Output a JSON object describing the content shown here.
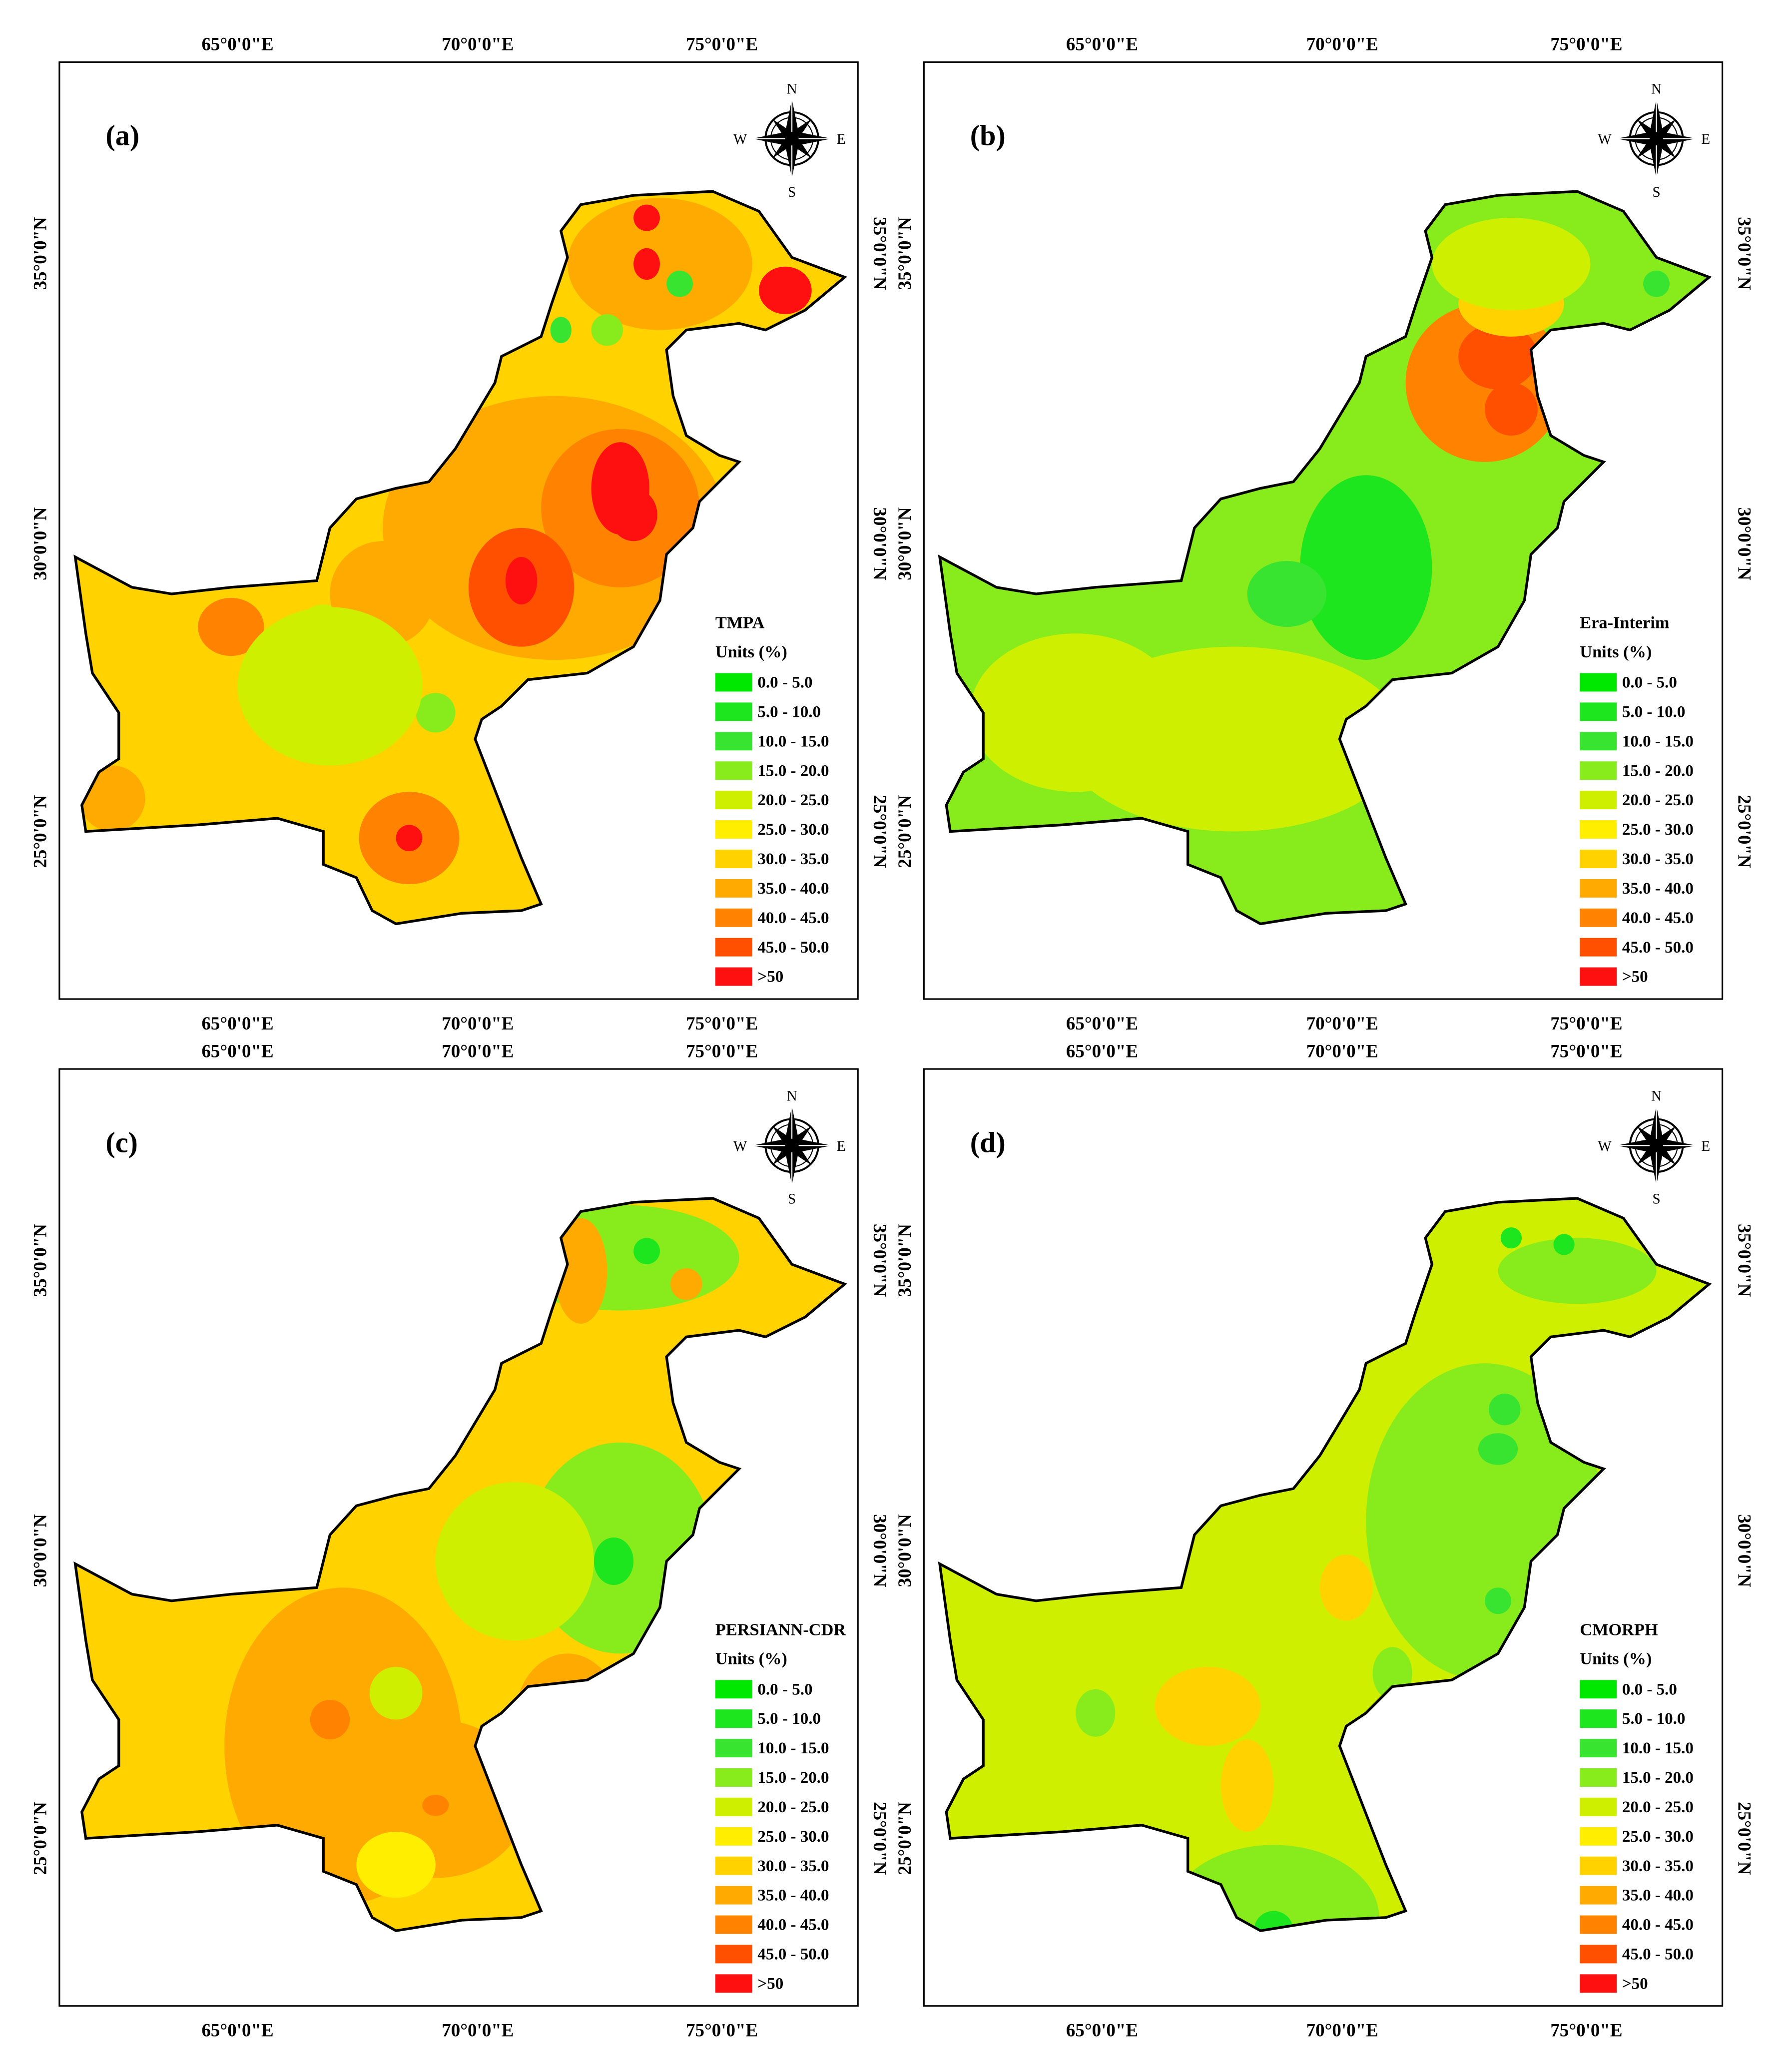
{
  "panels": [
    {
      "label": "(a)",
      "legend_title": "TMPA"
    },
    {
      "label": "(b)",
      "legend_title": "Era-Interim"
    },
    {
      "label": "(c)",
      "legend_title": "PERSIANN-CDR"
    },
    {
      "label": "(d)",
      "legend_title": "CMORPH"
    }
  ],
  "legend": {
    "units": "Units (%)",
    "classes": [
      {
        "label": "0.0 - 5.0",
        "color": "#00e800"
      },
      {
        "label": "5.0 - 10.0",
        "color": "#1ee61e"
      },
      {
        "label": "10.0 - 15.0",
        "color": "#38e430"
      },
      {
        "label": "15.0 - 20.0",
        "color": "#88ec1c"
      },
      {
        "label": "20.0 - 25.0",
        "color": "#cef000"
      },
      {
        "label": "25.0 - 30.0",
        "color": "#ffee00"
      },
      {
        "label": "30.0 - 35.0",
        "color": "#ffd200"
      },
      {
        "label": "35.0 - 40.0",
        "color": "#ffaa00"
      },
      {
        "label": "40.0 - 45.0",
        "color": "#ff8200"
      },
      {
        "label": "45.0 - 50.0",
        "color": "#ff5000"
      },
      {
        "label": ">50",
        "color": "#ff1010"
      }
    ]
  },
  "axes": {
    "x_labels": [
      "65°0'0\"E",
      "70°0'0\"E",
      "75°0'0\"E"
    ],
    "y_labels": [
      "25°0'0\"N",
      "30°0'0\"N",
      "35°0'0\"N"
    ]
  },
  "compass": {
    "n": "N",
    "e": "E",
    "s": "S",
    "w": "W"
  }
}
